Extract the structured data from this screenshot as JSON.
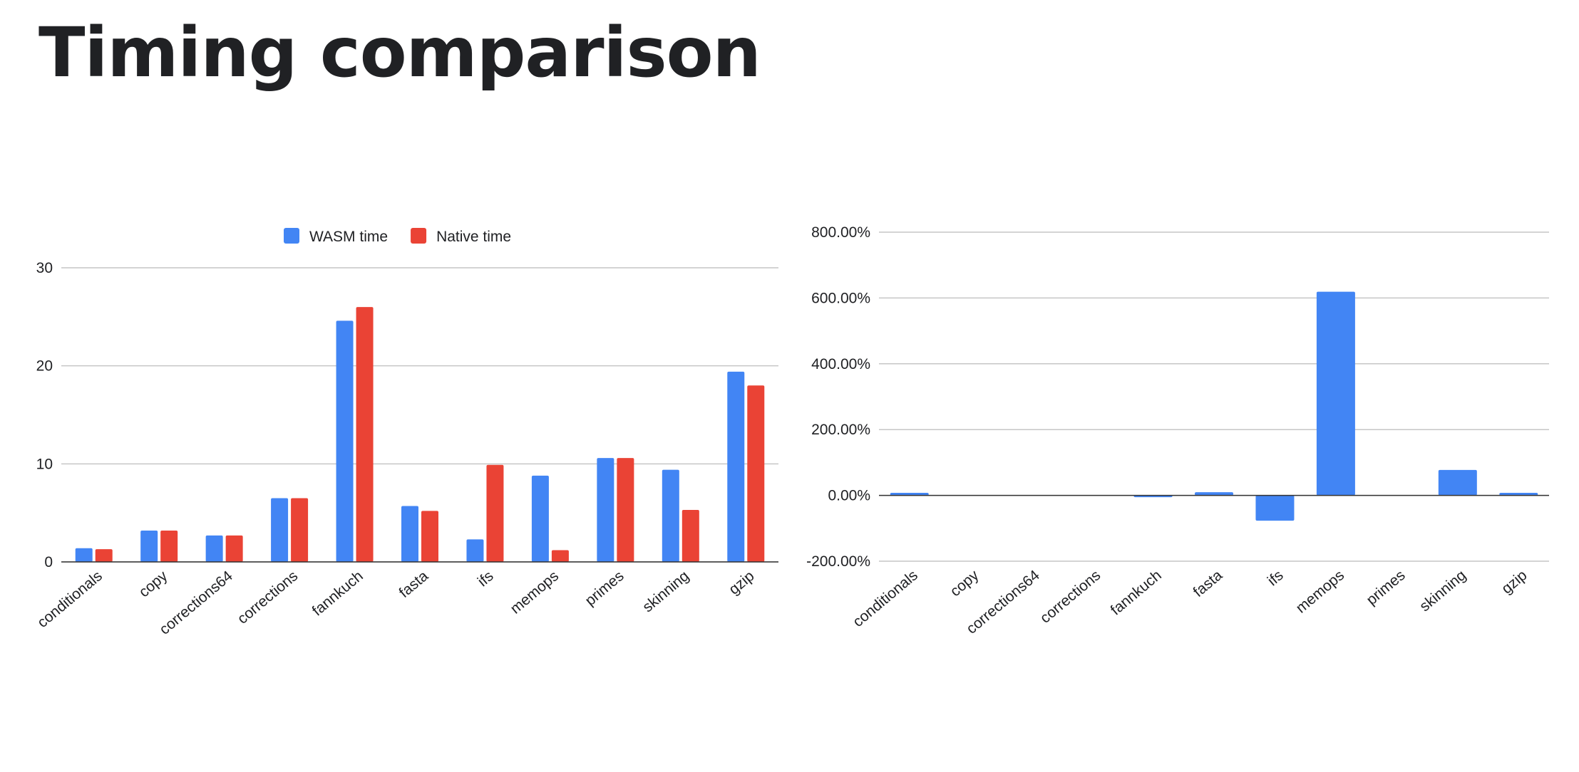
{
  "slide": {
    "title": "Timing comparison"
  },
  "chart_data": [
    {
      "type": "bar",
      "title": "",
      "xlabel": "",
      "ylabel": "",
      "categories": [
        "conditionals",
        "copy",
        "corrections64",
        "corrections",
        "fannkuch",
        "fasta",
        "ifs",
        "memops",
        "primes",
        "skinning",
        "gzip"
      ],
      "series": [
        {
          "name": "WASM time",
          "color": "#4285f4",
          "values": [
            1.4,
            3.2,
            2.7,
            6.5,
            24.6,
            5.7,
            2.3,
            8.8,
            10.6,
            9.4,
            19.4
          ]
        },
        {
          "name": "Native time",
          "color": "#ea4335",
          "values": [
            1.3,
            3.2,
            2.7,
            6.5,
            26.0,
            5.2,
            9.9,
            1.2,
            10.6,
            5.3,
            18.0
          ]
        }
      ],
      "ylim": [
        0,
        30
      ],
      "yticks": [
        0,
        10,
        20,
        30
      ],
      "yticklabels": [
        "0",
        "10",
        "20",
        "30"
      ],
      "grid": true,
      "legend": "top-center"
    },
    {
      "type": "bar",
      "title": "",
      "xlabel": "",
      "ylabel": "",
      "categories": [
        "conditionals",
        "copy",
        "corrections64",
        "corrections",
        "fannkuch",
        "fasta",
        "ifs",
        "memops",
        "primes",
        "skinning",
        "gzip"
      ],
      "series": [
        {
          "color": "#4285f4",
          "values": [
            7.7,
            0,
            0,
            0,
            -5.4,
            9.6,
            -76.8,
            619.0,
            0,
            77.4,
            7.8
          ]
        }
      ],
      "ylim": [
        -200,
        800
      ],
      "yticks": [
        -200,
        0,
        200,
        400,
        600,
        800
      ],
      "yticklabels": [
        "-200.00%",
        "0.00%",
        "200.00%",
        "400.00%",
        "600.00%",
        "800.00%"
      ],
      "grid": true,
      "legend": "none"
    }
  ]
}
